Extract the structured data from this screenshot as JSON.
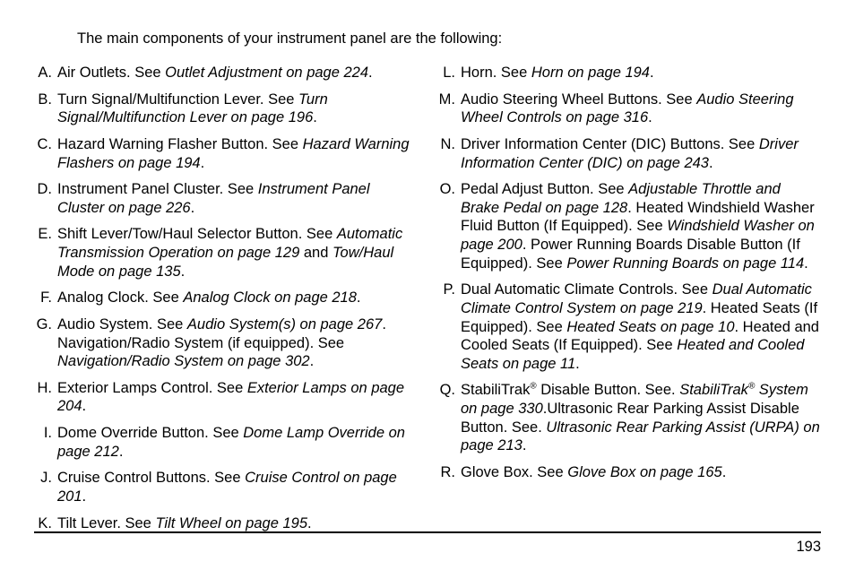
{
  "intro": "The main components of your instrument panel are the following:",
  "left": [
    {
      "m": "A.",
      "pre": "Air Outlets. See ",
      "ital": "Outlet Adjustment on page 224",
      "post": "."
    },
    {
      "m": "B.",
      "pre": "Turn Signal/Multifunction Lever. See ",
      "ital": "Turn Signal/Multifunction Lever on page 196",
      "post": "."
    },
    {
      "m": "C.",
      "pre": "Hazard Warning Flasher Button. See ",
      "ital": "Hazard Warning Flashers on page 194",
      "post": "."
    },
    {
      "m": "D.",
      "pre": "Instrument Panel Cluster. See ",
      "ital": "Instrument Panel Cluster on page 226",
      "post": "."
    },
    {
      "m": "E.",
      "segments": [
        {
          "t": "Shift Lever/Tow/Haul Selector Button. See "
        },
        {
          "t": "Automatic Transmission Operation on page 129",
          "i": true
        },
        {
          "t": " and "
        },
        {
          "t": "Tow/Haul Mode on page 135",
          "i": true
        },
        {
          "t": "."
        }
      ]
    },
    {
      "m": "F.",
      "pre": "Analog Clock. See ",
      "ital": "Analog Clock on page 218",
      "post": "."
    },
    {
      "m": "G.",
      "segments": [
        {
          "t": "Audio System. See "
        },
        {
          "t": "Audio System(s) on page 267",
          "i": true
        },
        {
          "t": ". Navigation/Radio System (if equipped). See "
        },
        {
          "t": "Navigation/Radio System on page 302",
          "i": true
        },
        {
          "t": "."
        }
      ]
    },
    {
      "m": "H.",
      "pre": "Exterior Lamps Control. See ",
      "ital": "Exterior Lamps on page 204",
      "post": "."
    },
    {
      "m": "I.",
      "pre": "Dome Override Button. See ",
      "ital": "Dome Lamp Override on page 212",
      "post": "."
    },
    {
      "m": "J.",
      "pre": "Cruise Control Buttons. See ",
      "ital": "Cruise Control on page 201",
      "post": "."
    },
    {
      "m": "K.",
      "pre": "Tilt Lever. See ",
      "ital": "Tilt Wheel on page 195",
      "post": "."
    }
  ],
  "right": [
    {
      "m": "L.",
      "pre": "Horn. See ",
      "ital": "Horn on page 194",
      "post": "."
    },
    {
      "m": "M.",
      "pre": "Audio Steering Wheel Buttons. See ",
      "ital": "Audio Steering Wheel Controls on page 316",
      "post": "."
    },
    {
      "m": "N.",
      "pre": "Driver Information Center (DIC) Buttons. See ",
      "ital": "Driver Information Center (DIC) on page 243",
      "post": "."
    },
    {
      "m": "O.",
      "segments": [
        {
          "t": "Pedal Adjust Button. See "
        },
        {
          "t": "Adjustable Throttle and Brake Pedal on page 128",
          "i": true
        },
        {
          "t": ". Heated Windshield Washer Fluid Button (If Equipped). See "
        },
        {
          "t": "Windshield Washer on page 200",
          "i": true
        },
        {
          "t": ". Power Running Boards Disable Button (If Equipped). See "
        },
        {
          "t": "Power Running Boards on page 114",
          "i": true
        },
        {
          "t": "."
        }
      ]
    },
    {
      "m": "P.",
      "segments": [
        {
          "t": "Dual Automatic Climate Controls. See "
        },
        {
          "t": "Dual Automatic Climate Control System on page 219",
          "i": true
        },
        {
          "t": ". Heated Seats (If Equipped). See "
        },
        {
          "t": "Heated Seats on page 10",
          "i": true
        },
        {
          "t": ". Heated and Cooled Seats (If Equipped). See "
        },
        {
          "t": "Heated and Cooled Seats on page 11",
          "i": true
        },
        {
          "t": "."
        }
      ]
    },
    {
      "m": "Q.",
      "segments": [
        {
          "t": "StabiliTrak"
        },
        {
          "reg": true
        },
        {
          "t": " Disable Button. See. "
        },
        {
          "t": "StabiliTrak",
          "i": true
        },
        {
          "reg": true,
          "i": true
        },
        {
          "t": " System on page 330",
          "i": true
        },
        {
          "t": ".Ultrasonic Rear Parking Assist Disable Button. See. "
        },
        {
          "t": "Ultrasonic Rear Parking Assist (URPA) on page 213",
          "i": true
        },
        {
          "t": "."
        }
      ]
    },
    {
      "m": "R.",
      "pre": "Glove Box. See ",
      "ital": "Glove Box on page 165",
      "post": "."
    }
  ],
  "page_number": "193"
}
